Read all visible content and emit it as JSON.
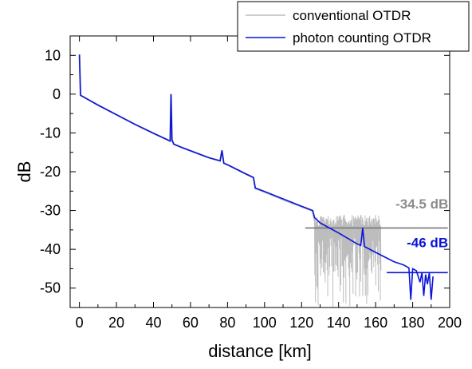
{
  "chart_data": {
    "type": "line",
    "title": "",
    "xlabel": "distance [km]",
    "ylabel": "dB",
    "xlim": [
      -5,
      200
    ],
    "ylim": [
      -55,
      15
    ],
    "xticks": [
      0,
      20,
      40,
      60,
      80,
      100,
      120,
      140,
      160,
      180,
      200
    ],
    "yticks": [
      10,
      0,
      -10,
      -20,
      -30,
      -40,
      -50
    ],
    "legend_position": "top-right",
    "grid": false,
    "series": [
      {
        "name": "conventional OTDR",
        "color": "#bdbdbd",
        "points": [
          [
            0,
            10.2
          ],
          [
            0.6,
            -0.3
          ],
          [
            10,
            -2.8
          ],
          [
            20,
            -5.3
          ],
          [
            30,
            -7.8
          ],
          [
            40,
            -10.1
          ],
          [
            49,
            -12.1
          ],
          [
            49.5,
            0
          ],
          [
            50,
            -11.8
          ],
          [
            51,
            -12.9
          ],
          [
            55,
            -13.7
          ],
          [
            60,
            -14.6
          ],
          [
            70,
            -16.4
          ],
          [
            76,
            -17.2
          ],
          [
            77,
            -14.5
          ],
          [
            78,
            -17.8
          ],
          [
            80,
            -18.2
          ],
          [
            90,
            -20.6
          ],
          [
            94,
            -21.5
          ],
          [
            95,
            -24.3
          ],
          [
            100,
            -25.2
          ],
          [
            110,
            -27.2
          ],
          [
            120,
            -29.0
          ],
          [
            126,
            -30.1
          ],
          [
            127,
            -32.5
          ],
          [
            128,
            -33.5
          ]
        ],
        "noise_region": {
          "x": [
            127,
            163
          ],
          "y_upper": -31,
          "y_lower": -55
        },
        "floor": -34.5
      },
      {
        "name": "photon counting OTDR",
        "color": "#0a14d8",
        "points": [
          [
            0,
            10.2
          ],
          [
            0.6,
            -0.3
          ],
          [
            10,
            -2.8
          ],
          [
            20,
            -5.3
          ],
          [
            30,
            -7.8
          ],
          [
            40,
            -10.1
          ],
          [
            49,
            -12.1
          ],
          [
            49.5,
            0
          ],
          [
            50,
            -11.8
          ],
          [
            51,
            -12.9
          ],
          [
            55,
            -13.7
          ],
          [
            60,
            -14.6
          ],
          [
            70,
            -16.4
          ],
          [
            76,
            -17.2
          ],
          [
            77,
            -14.5
          ],
          [
            78,
            -17.8
          ],
          [
            80,
            -18.2
          ],
          [
            90,
            -20.6
          ],
          [
            94,
            -21.5
          ],
          [
            95,
            -24.2
          ],
          [
            100,
            -25.1
          ],
          [
            110,
            -27.0
          ],
          [
            120,
            -28.9
          ],
          [
            126,
            -30.0
          ],
          [
            127,
            -31.8
          ],
          [
            130,
            -33.2
          ],
          [
            140,
            -35.8
          ],
          [
            150,
            -38.6
          ],
          [
            152,
            -39.0
          ],
          [
            153,
            -34.5
          ],
          [
            154,
            -39.3
          ],
          [
            160,
            -40.8
          ],
          [
            165,
            -42.0
          ],
          [
            170,
            -43.2
          ],
          [
            175,
            -44.0
          ],
          [
            178,
            -44.8
          ],
          [
            179,
            -53.0
          ],
          [
            180,
            -45.0
          ],
          [
            182,
            -45.5
          ],
          [
            184,
            -48.5
          ],
          [
            185,
            -46.0
          ],
          [
            186,
            -52.0
          ],
          [
            187,
            -46.5
          ],
          [
            188,
            -49.0
          ],
          [
            189,
            -46.0
          ],
          [
            190,
            -53.0
          ],
          [
            191,
            -47.0
          ]
        ],
        "floor": -46
      }
    ],
    "annotations": [
      {
        "text": "-34.5 dB",
        "color": "#8c8c8c"
      },
      {
        "text": "-46 dB",
        "color": "#0a14d8"
      }
    ]
  }
}
